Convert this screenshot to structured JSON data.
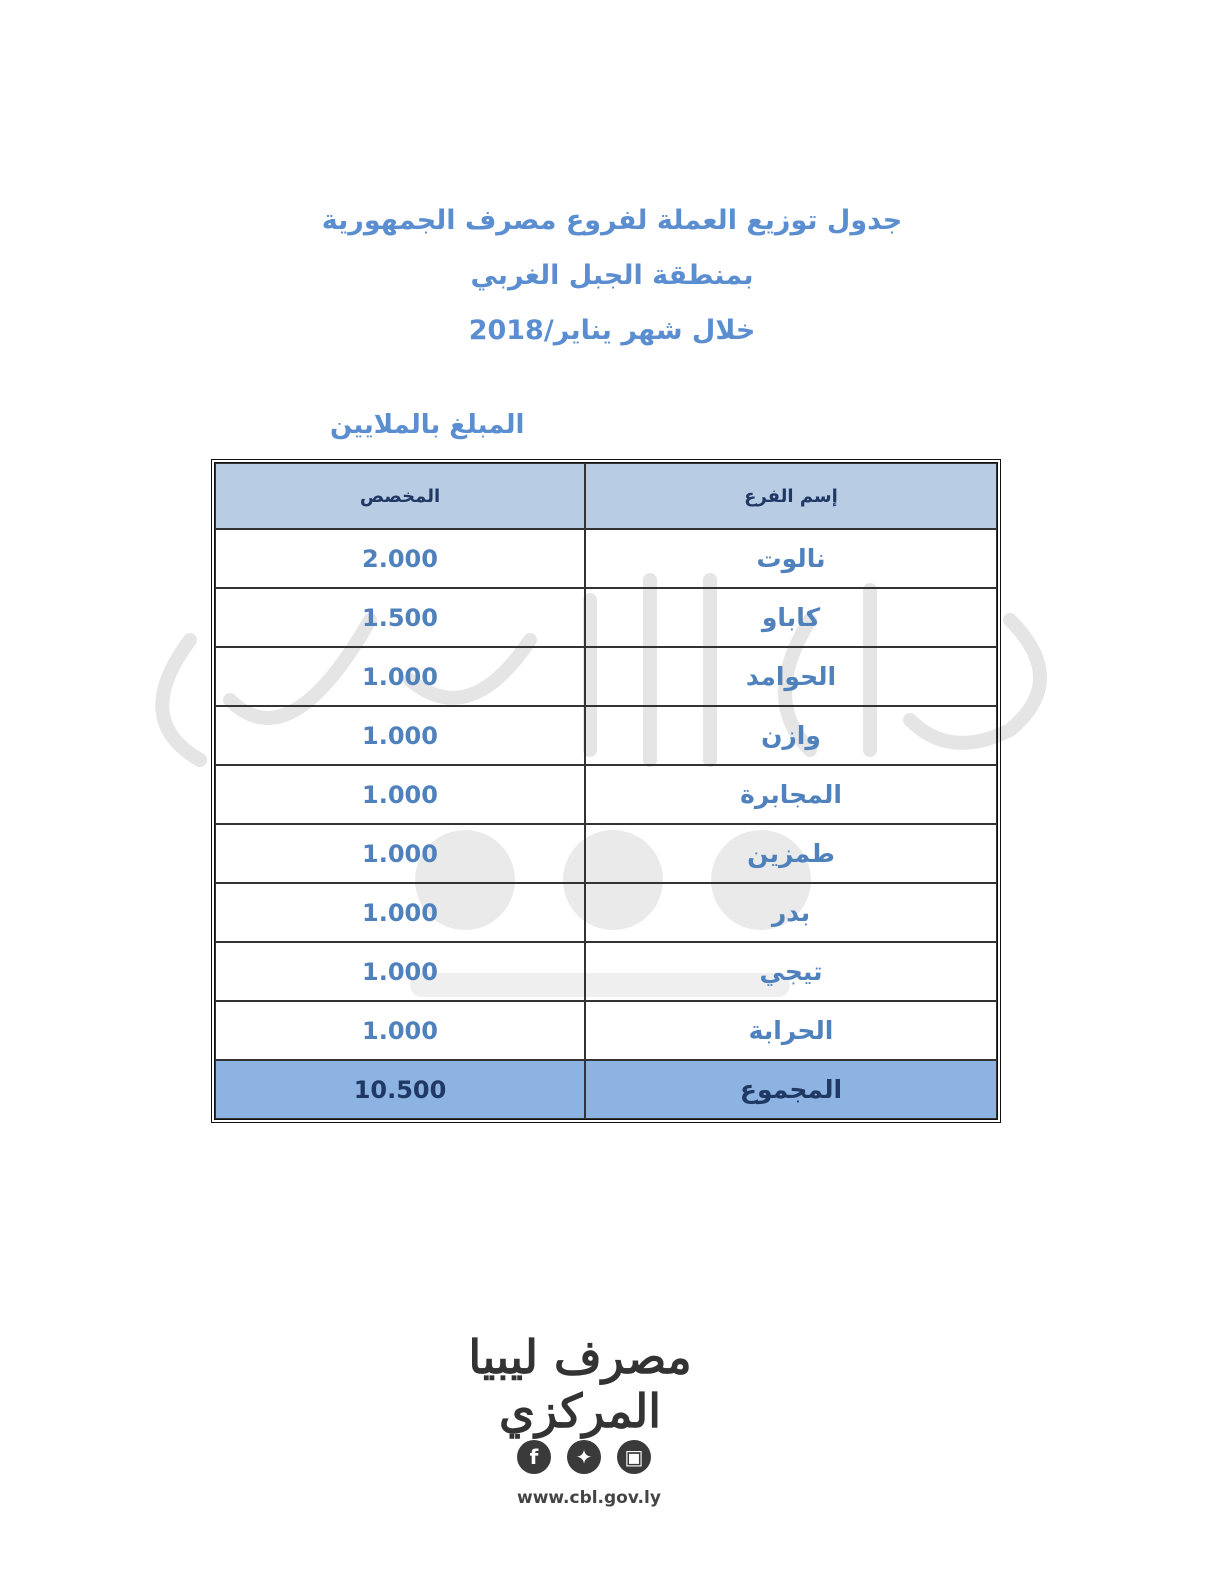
{
  "title": {
    "line1": "جدول توزيع العملة لفروع مصرف الجمهورية",
    "line2": "بمنطقة الجبل الغربي",
    "line3": "خلال شهر يناير/2018"
  },
  "unit_note": "المبلغ بالملايين",
  "table": {
    "headers": {
      "branch": "إسم الفرع",
      "allocation": "المخصص"
    },
    "rows": [
      {
        "branch": "نالوت",
        "allocation": "2.000"
      },
      {
        "branch": "كاباو",
        "allocation": "1.500"
      },
      {
        "branch": "الحوامد",
        "allocation": "1.000"
      },
      {
        "branch": "وازن",
        "allocation": "1.000"
      },
      {
        "branch": "المجابرة",
        "allocation": "1.000"
      },
      {
        "branch": "طمزين",
        "allocation": "1.000"
      },
      {
        "branch": "بدر",
        "allocation": "1.000"
      },
      {
        "branch": "تيجي",
        "allocation": "1.000"
      },
      {
        "branch": "الحرابة",
        "allocation": "1.000"
      }
    ],
    "total": {
      "label": "المجموع",
      "value": "10.500"
    }
  },
  "footer": {
    "logo_text": "مصرف ليبيا المركزي",
    "social_icons": [
      "facebook-icon",
      "twitter-icon",
      "instagram-icon"
    ],
    "website": "www.cbl.gov.ly"
  },
  "colors": {
    "title": "#5a8ed0",
    "header_bg": "#b8cce4",
    "total_bg": "#8db3e2",
    "value_text": "#4f81bd"
  }
}
